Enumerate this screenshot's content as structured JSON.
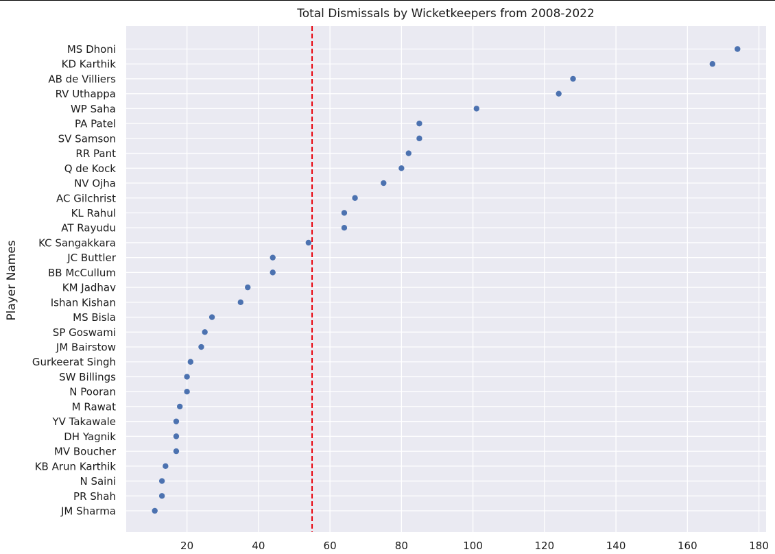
{
  "chart_data": {
    "type": "scatter",
    "title": "Total Dismissals by Wicketkeepers from 2008-2022",
    "xlabel": "",
    "ylabel": "Player Names",
    "xlim": [
      3,
      182
    ],
    "xticks": [
      20,
      40,
      60,
      80,
      100,
      120,
      140,
      160,
      180
    ],
    "grid": true,
    "reference_line": {
      "axis": "x",
      "value": 55,
      "style": "dashed",
      "color": "#e8000b"
    },
    "point_color": "#4c72b0",
    "background_color": "#eaeaf2",
    "categories": [
      "MS Dhoni",
      "KD Karthik",
      "AB de Villiers",
      "RV Uthappa",
      "WP Saha",
      "PA Patel",
      "SV Samson",
      "RR Pant",
      "Q de Kock",
      "NV Ojha",
      "AC Gilchrist",
      "KL Rahul",
      "AT Rayudu",
      "KC Sangakkara",
      "JC Buttler",
      "BB McCullum",
      "KM Jadhav",
      "Ishan Kishan",
      "MS Bisla",
      "SP Goswami",
      "JM Bairstow",
      "Gurkeerat Singh",
      "SW Billings",
      "N Pooran",
      "M Rawat",
      "YV Takawale",
      "DH Yagnik",
      "MV Boucher",
      "KB Arun Karthik",
      "N Saini",
      "PR Shah",
      "JM Sharma"
    ],
    "values": [
      174,
      167,
      128,
      124,
      101,
      85,
      85,
      82,
      80,
      75,
      67,
      64,
      64,
      54,
      44,
      44,
      37,
      35,
      27,
      25,
      24,
      21,
      20,
      20,
      18,
      17,
      17,
      17,
      14,
      13,
      13,
      11
    ]
  }
}
